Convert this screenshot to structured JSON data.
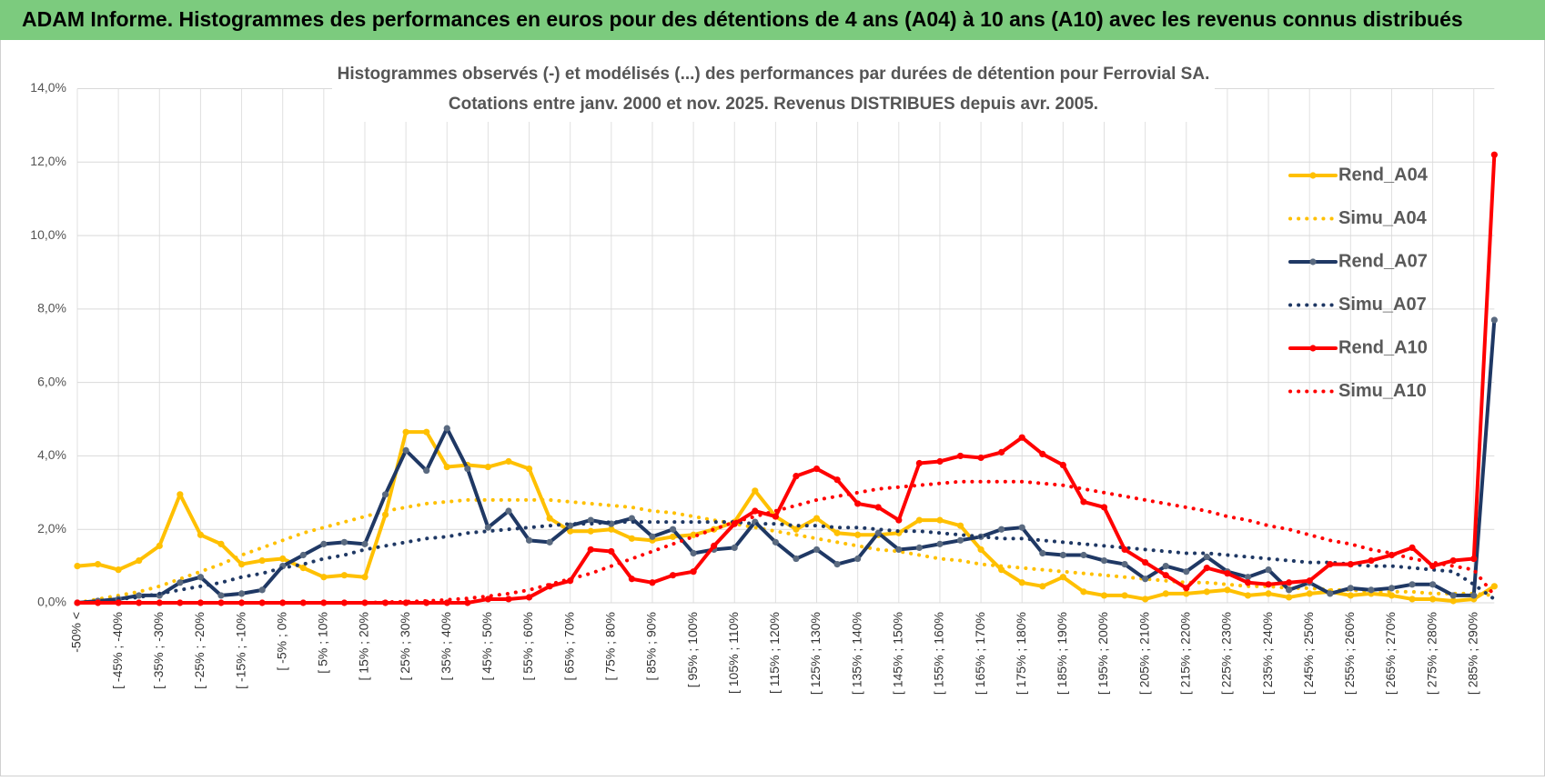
{
  "header": {
    "title": "ADAM Informe. Histogrammes des performances en euros pour des détentions de 4 ans (A04) à 10 ans (A10) avec les revenus connus distribués"
  },
  "chart_data": {
    "type": "line",
    "title": "Histogrammes observés (-) et modélisés (...) des performances par durées de détention pour Ferrovial SA.",
    "subtitle": "Cotations entre janv. 2000 et nov. 2025. Revenus DISTRIBUES depuis avr. 2005.",
    "categories": [
      "-50% <",
      null,
      "[ -45% ; -40%",
      null,
      "[ -35% ; -30%",
      null,
      "[ -25% ; -20%",
      null,
      "[ -15% ; -10%",
      null,
      "[ -5% ; 0%",
      null,
      "[ 5% ; 10%",
      null,
      "[ 15% ; 20%",
      null,
      "[ 25% ; 30%",
      null,
      "[ 35% ; 40%",
      null,
      "[ 45% ; 50%",
      null,
      "[ 55% ; 60%",
      null,
      "[ 65% ; 70%",
      null,
      "[ 75% ; 80%",
      null,
      "[ 85% ; 90%",
      null,
      "[ 95% ; 100%",
      null,
      "[ 105% ; 110%",
      null,
      "[ 115% ; 120%",
      null,
      "[ 125% ; 130%",
      null,
      "[ 135% ; 140%",
      null,
      "[ 145% ; 150%",
      null,
      "[ 155% ; 160%",
      null,
      "[ 165% ; 170%",
      null,
      "[ 175% ; 180%",
      null,
      "[ 185% ; 190%",
      null,
      "[ 195% ; 200%",
      null,
      "[ 205% ; 210%",
      null,
      "[ 215% ; 220%",
      null,
      "[ 225% ; 230%",
      null,
      "[ 235% ; 240%",
      null,
      "[ 245% ; 250%",
      null,
      "[ 255% ; 260%",
      null,
      "[ 265% ; 270%",
      null,
      "[ 275% ; 280%",
      null,
      "[ 285% ; 290%",
      null
    ],
    "ylim": [
      0,
      14
    ],
    "yticks": [
      {
        "value": 0,
        "label": "0,0%"
      },
      {
        "value": 2,
        "label": "2,0%"
      },
      {
        "value": 4,
        "label": "4,0%"
      },
      {
        "value": 6,
        "label": "6,0%"
      },
      {
        "value": 8,
        "label": "8,0%"
      },
      {
        "value": 10,
        "label": "10,0%"
      },
      {
        "value": 12,
        "label": "12,0%"
      },
      {
        "value": 14,
        "label": "14,0%"
      }
    ],
    "grid": true,
    "legend": "right",
    "series": [
      {
        "name": "Rend_A04",
        "color": "#FFC000",
        "style": "solid",
        "values": [
          1.0,
          1.05,
          0.9,
          1.15,
          1.55,
          2.95,
          1.85,
          1.6,
          1.05,
          1.15,
          1.2,
          0.95,
          0.7,
          0.75,
          0.7,
          2.4,
          4.65,
          4.65,
          3.7,
          3.75,
          3.7,
          3.85,
          3.65,
          2.3,
          1.95,
          1.95,
          2.0,
          1.75,
          1.7,
          1.8,
          1.85,
          2.0,
          2.2,
          3.05,
          2.35,
          2.0,
          2.3,
          1.9,
          1.85,
          1.85,
          1.9,
          2.25,
          2.25,
          2.1,
          1.45,
          0.9,
          0.55,
          0.45,
          0.7,
          0.3,
          0.2,
          0.2,
          0.1,
          0.25,
          0.25,
          0.3,
          0.35,
          0.2,
          0.25,
          0.15,
          0.25,
          0.3,
          0.2,
          0.25,
          0.2,
          0.1,
          0.1,
          0.05,
          0.1,
          0.45
        ]
      },
      {
        "name": "Simu_A04",
        "color": "#FFC000",
        "style": "dotted",
        "values": [
          0.0,
          0.1,
          0.2,
          0.3,
          0.45,
          0.65,
          0.85,
          1.05,
          1.3,
          1.5,
          1.7,
          1.9,
          2.05,
          2.2,
          2.35,
          2.5,
          2.6,
          2.7,
          2.75,
          2.8,
          2.8,
          2.8,
          2.8,
          2.8,
          2.75,
          2.7,
          2.65,
          2.6,
          2.5,
          2.45,
          2.35,
          2.25,
          2.15,
          2.05,
          1.95,
          1.85,
          1.75,
          1.65,
          1.55,
          1.45,
          1.4,
          1.3,
          1.2,
          1.15,
          1.05,
          1.0,
          0.95,
          0.9,
          0.85,
          0.8,
          0.75,
          0.7,
          0.65,
          0.6,
          0.55,
          0.55,
          0.5,
          0.45,
          0.45,
          0.4,
          0.4,
          0.35,
          0.35,
          0.3,
          0.3,
          0.3,
          0.25,
          0.25,
          0.25,
          0.2
        ]
      },
      {
        "name": "Rend_A07",
        "color": "#1F3864",
        "style": "solid",
        "values": [
          0.0,
          0.05,
          0.1,
          0.2,
          0.2,
          0.55,
          0.7,
          0.2,
          0.25,
          0.35,
          1.0,
          1.3,
          1.6,
          1.65,
          1.6,
          2.95,
          4.15,
          3.6,
          4.75,
          3.65,
          2.05,
          2.5,
          1.7,
          1.65,
          2.1,
          2.25,
          2.15,
          2.3,
          1.8,
          2.0,
          1.35,
          1.45,
          1.5,
          2.2,
          1.65,
          1.2,
          1.45,
          1.05,
          1.2,
          1.9,
          1.45,
          1.5,
          1.6,
          1.7,
          1.8,
          2.0,
          2.05,
          1.35,
          1.3,
          1.3,
          1.15,
          1.05,
          0.65,
          1.0,
          0.85,
          1.25,
          0.85,
          0.7,
          0.9,
          0.35,
          0.55,
          0.25,
          0.4,
          0.35,
          0.4,
          0.5,
          0.5,
          0.2,
          0.2,
          7.7
        ]
      },
      {
        "name": "Simu_A07",
        "color": "#1F3864",
        "style": "dotted",
        "values": [
          0.0,
          0.05,
          0.1,
          0.15,
          0.25,
          0.35,
          0.45,
          0.55,
          0.7,
          0.8,
          0.95,
          1.05,
          1.2,
          1.3,
          1.45,
          1.55,
          1.65,
          1.75,
          1.8,
          1.9,
          1.95,
          2.0,
          2.05,
          2.1,
          2.15,
          2.15,
          2.2,
          2.2,
          2.2,
          2.2,
          2.2,
          2.2,
          2.2,
          2.15,
          2.15,
          2.1,
          2.1,
          2.05,
          2.05,
          2.0,
          1.95,
          1.95,
          1.9,
          1.85,
          1.8,
          1.75,
          1.75,
          1.7,
          1.65,
          1.6,
          1.55,
          1.5,
          1.45,
          1.4,
          1.35,
          1.35,
          1.3,
          1.25,
          1.2,
          1.15,
          1.1,
          1.1,
          1.05,
          1.0,
          1.0,
          0.95,
          0.9,
          0.85,
          0.5,
          0.1
        ]
      },
      {
        "name": "Rend_A10",
        "color": "#FF0000",
        "style": "solid",
        "values": [
          0,
          0,
          0,
          0,
          0,
          0,
          0,
          0,
          0,
          0,
          0,
          0,
          0,
          0,
          0,
          0,
          0,
          0,
          0,
          0,
          0.1,
          0.1,
          0.15,
          0.45,
          0.6,
          1.45,
          1.4,
          0.65,
          0.55,
          0.75,
          0.85,
          1.55,
          2.15,
          2.5,
          2.35,
          3.45,
          3.65,
          3.35,
          2.7,
          2.6,
          2.25,
          3.8,
          3.85,
          4.0,
          3.95,
          4.1,
          4.5,
          4.05,
          3.75,
          2.75,
          2.6,
          1.45,
          1.1,
          0.75,
          0.4,
          0.95,
          0.8,
          0.55,
          0.5,
          0.55,
          0.6,
          1.05,
          1.05,
          1.15,
          1.3,
          1.5,
          1.0,
          1.15,
          1.2,
          12.2
        ]
      },
      {
        "name": "Simu_A10",
        "color": "#FF0000",
        "style": "dotted",
        "values": [
          0,
          0,
          0,
          0,
          0,
          0,
          0,
          0,
          0,
          0,
          0,
          0,
          0,
          0,
          0,
          0.02,
          0.03,
          0.05,
          0.08,
          0.12,
          0.18,
          0.25,
          0.35,
          0.5,
          0.65,
          0.8,
          1.0,
          1.2,
          1.4,
          1.6,
          1.8,
          2.0,
          2.2,
          2.35,
          2.5,
          2.65,
          2.8,
          2.9,
          3.0,
          3.1,
          3.15,
          3.2,
          3.25,
          3.3,
          3.3,
          3.3,
          3.3,
          3.25,
          3.2,
          3.1,
          3.0,
          2.9,
          2.8,
          2.7,
          2.6,
          2.5,
          2.35,
          2.25,
          2.1,
          2.0,
          1.85,
          1.7,
          1.6,
          1.45,
          1.35,
          1.2,
          1.1,
          1.0,
          0.9,
          0.2
        ]
      }
    ]
  }
}
